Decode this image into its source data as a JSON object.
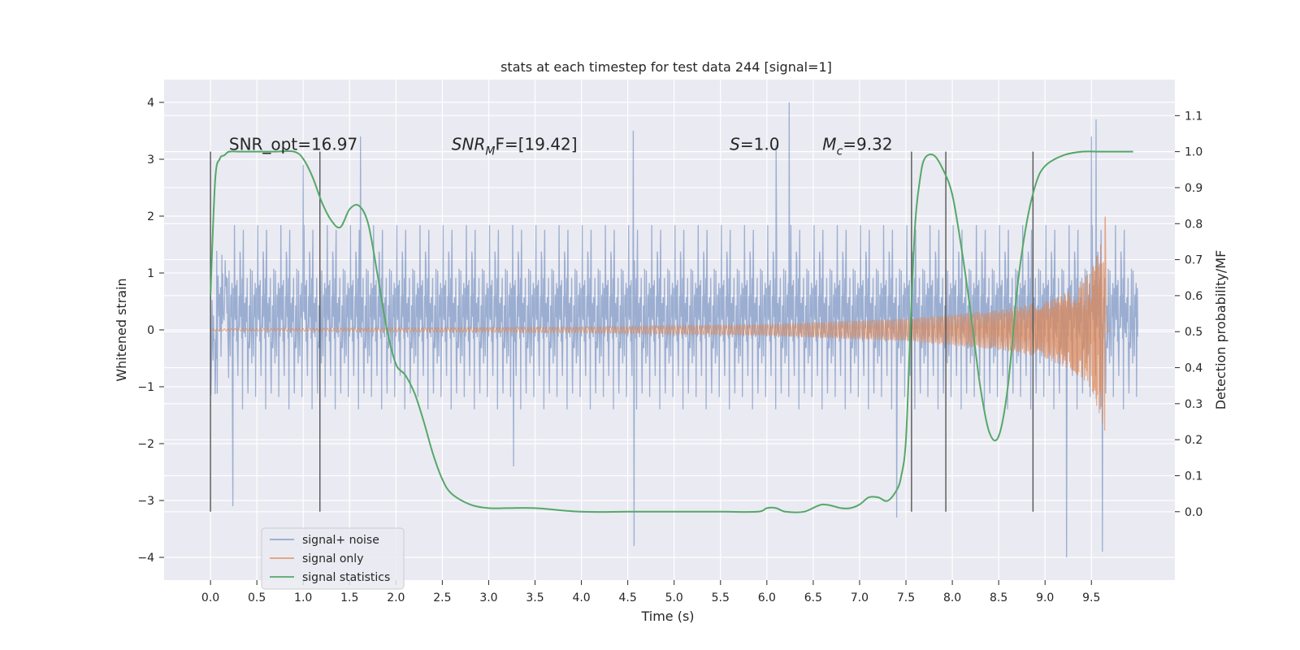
{
  "chart_data": {
    "type": "line",
    "title": "stats at each timestep for test data 244 [signal=1]",
    "xlabel": "Time (s)",
    "ylabel": "Whitened strain",
    "ylabel_right": "Detection probability/MF",
    "xlim": [
      -0.5,
      10.4
    ],
    "ylim": [
      -4.4,
      4.4
    ],
    "ylim_right": [
      -0.19,
      1.2
    ],
    "x_ticks": [
      0.0,
      0.5,
      1.0,
      1.5,
      2.0,
      2.5,
      3.0,
      3.5,
      4.0,
      4.5,
      5.0,
      5.5,
      6.0,
      6.5,
      7.0,
      7.5,
      8.0,
      8.5,
      9.0,
      9.5
    ],
    "x_tick_labels": [
      "0.0",
      "0.5",
      "1.0",
      "1.5",
      "2.0",
      "2.5",
      "3.0",
      "3.5",
      "4.0",
      "4.5",
      "5.0",
      "5.5",
      "6.0",
      "6.5",
      "7.0",
      "7.5",
      "8.0",
      "8.5",
      "9.0",
      "9.5"
    ],
    "y_ticks": [
      -4,
      -3,
      -2,
      -1,
      0,
      1,
      2,
      3,
      4
    ],
    "y_tick_labels": [
      "−4",
      "−3",
      "−2",
      "−1",
      "0",
      "1",
      "2",
      "3",
      "4"
    ],
    "y_ticks_right": [
      0.0,
      0.1,
      0.2,
      0.3,
      0.4,
      0.5,
      0.6,
      0.7,
      0.8,
      0.9,
      1.0,
      1.1
    ],
    "y_tick_labels_right": [
      "0.0",
      "0.1",
      "0.2",
      "0.3",
      "0.4",
      "0.5",
      "0.6",
      "0.7",
      "0.8",
      "0.9",
      "1.0",
      "1.1"
    ],
    "grid": true,
    "legend_position": "lower-left",
    "series": [
      {
        "name": "signal+ noise",
        "color": "#4c72b0",
        "style": "dense noise trace, 0.0 to 10.0 s",
        "x_range": [
          0.0,
          10.0
        ],
        "envelope_typical": 1.8,
        "peaks": [
          [
            0.24,
            -3.1
          ],
          [
            1.0,
            2.9
          ],
          [
            1.62,
            3.4
          ],
          [
            3.27,
            -2.4
          ],
          [
            4.56,
            3.5
          ],
          [
            4.57,
            -3.8
          ],
          [
            6.24,
            4.0
          ],
          [
            6.1,
            3.25
          ],
          [
            7.4,
            -3.3
          ],
          [
            9.23,
            -4.0
          ],
          [
            9.55,
            3.7
          ],
          [
            9.62,
            -3.9
          ],
          [
            9.5,
            3.4
          ]
        ]
      },
      {
        "name": "signal only",
        "color": "#dd8452",
        "style": "chirp, amplitude grows toward merger",
        "x_range": [
          0.0,
          9.7
        ],
        "merger_time": 9.65,
        "envelope": [
          [
            0.0,
            0.02
          ],
          [
            4.0,
            0.05
          ],
          [
            6.0,
            0.1
          ],
          [
            7.5,
            0.2
          ],
          [
            8.5,
            0.35
          ],
          [
            9.0,
            0.5
          ],
          [
            9.3,
            0.72
          ],
          [
            9.5,
            1.05
          ],
          [
            9.6,
            1.55
          ],
          [
            9.65,
            2.0
          ]
        ]
      },
      {
        "name": "signal statistics",
        "color": "#55a868",
        "axis": "right",
        "x": [
          0.0,
          0.05,
          0.1,
          0.15,
          0.2,
          0.3,
          0.5,
          0.7,
          0.9,
          1.0,
          1.1,
          1.2,
          1.3,
          1.4,
          1.5,
          1.6,
          1.7,
          1.8,
          1.9,
          2.0,
          2.1,
          2.2,
          2.3,
          2.4,
          2.5,
          2.6,
          2.8,
          3.0,
          3.2,
          3.5,
          4.0,
          4.5,
          5.0,
          5.5,
          5.9,
          6.0,
          6.1,
          6.2,
          6.4,
          6.6,
          6.8,
          6.9,
          7.0,
          7.1,
          7.2,
          7.3,
          7.4,
          7.45,
          7.5,
          7.55,
          7.6,
          7.65,
          7.7,
          7.8,
          7.9,
          8.0,
          8.1,
          8.2,
          8.3,
          8.4,
          8.5,
          8.6,
          8.7,
          8.8,
          8.9,
          9.0,
          9.2,
          9.4,
          9.6,
          9.8,
          9.95
        ],
        "y": [
          0.6,
          0.92,
          0.98,
          0.99,
          1.0,
          1.0,
          1.0,
          1.0,
          1.0,
          0.98,
          0.93,
          0.86,
          0.81,
          0.79,
          0.84,
          0.85,
          0.8,
          0.66,
          0.51,
          0.41,
          0.38,
          0.33,
          0.25,
          0.16,
          0.09,
          0.05,
          0.02,
          0.01,
          0.01,
          0.01,
          0.0,
          0.0,
          0.0,
          0.0,
          0.0,
          0.01,
          0.01,
          0.0,
          0.0,
          0.02,
          0.01,
          0.01,
          0.02,
          0.04,
          0.04,
          0.03,
          0.06,
          0.1,
          0.2,
          0.52,
          0.8,
          0.92,
          0.98,
          0.99,
          0.95,
          0.88,
          0.73,
          0.55,
          0.35,
          0.22,
          0.21,
          0.35,
          0.62,
          0.8,
          0.91,
          0.96,
          0.99,
          1.0,
          1.0,
          1.0,
          1.0
        ]
      }
    ],
    "vlines": [
      0.0,
      1.18,
      7.56,
      7.93,
      8.87
    ],
    "vline_range_right": [
      0.0,
      1.0
    ],
    "annotations": [
      {
        "text": "SNR_opt=16.97",
        "x": 0.2,
        "y_right": 1.0
      },
      {
        "base": "SNR",
        "sub": "M",
        "rest": "F=[19.42]",
        "x": 2.6,
        "y_right": 1.0
      },
      {
        "base": "S",
        "sub": "",
        "rest": "=1.0",
        "x": 5.6,
        "y_right": 1.0
      },
      {
        "base": "M",
        "sub": "c",
        "rest": "=9.32",
        "x": 6.6,
        "y_right": 1.0
      }
    ],
    "colors": {
      "background": "#eaeaf2",
      "grid": "#ffffff",
      "vline": "#555555"
    }
  }
}
